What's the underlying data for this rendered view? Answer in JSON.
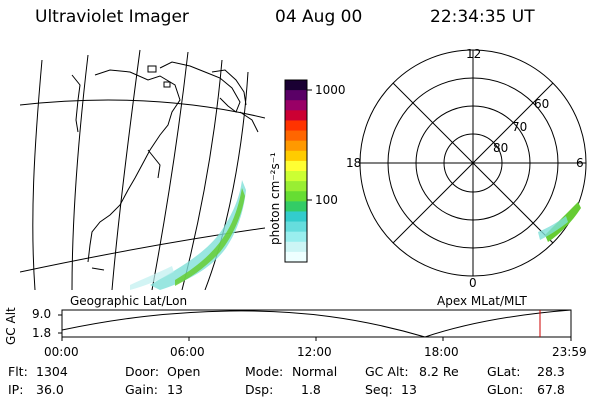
{
  "header": {
    "instrument": "Ultraviolet Imager",
    "date": "04 Aug 00",
    "time": "22:34:35 UT"
  },
  "colorbar": {
    "unit_label": "photon cm⁻²s⁻¹",
    "tick_labels": [
      "1000",
      "100"
    ],
    "colors": [
      "#1a0033",
      "#5a0066",
      "#990066",
      "#cc0033",
      "#ff3300",
      "#ff6600",
      "#ff9900",
      "#ffcc00",
      "#ffff33",
      "#ccff33",
      "#99ee33",
      "#66dd33",
      "#33cc66",
      "#33cccc",
      "#66dddd",
      "#99eeee",
      "#ccf5f5",
      "#eeffff"
    ]
  },
  "left_panel": {
    "caption": "Geographic Lat/Lon"
  },
  "polar_plot": {
    "caption": "Apex MLat/MLT",
    "mlt_labels": {
      "top": "12",
      "left": "18",
      "right": "6",
      "bottom": "0"
    },
    "mlat_labels": [
      "60",
      "70",
      "80"
    ]
  },
  "timeline": {
    "ylabel": "GC Alt",
    "y_ticks": [
      "9.0",
      "1.8"
    ],
    "x_ticks": [
      "00:00",
      "06:00",
      "12:00",
      "18:00",
      "23:59"
    ],
    "current_time_marker_color": "#cc0000"
  },
  "info": {
    "flt_label": "Flt:",
    "flt_value": "1304",
    "ip_label": "IP:",
    "ip_value": "36.0",
    "door_label": "Door:",
    "door_value": "Open",
    "gain_label": "Gain:",
    "gain_value": "13",
    "mode_label": "Mode:",
    "mode_value": "Normal",
    "dsp_label": "Dsp:",
    "dsp_value": "1.8",
    "gcalt_label": "GC Alt:",
    "gcalt_value": "8.2 Re",
    "seq_label": "Seq:",
    "seq_value": "13",
    "glat_label": "GLat:",
    "glat_value": "28.3",
    "glon_label": "GLon:",
    "glon_value": "67.8"
  }
}
